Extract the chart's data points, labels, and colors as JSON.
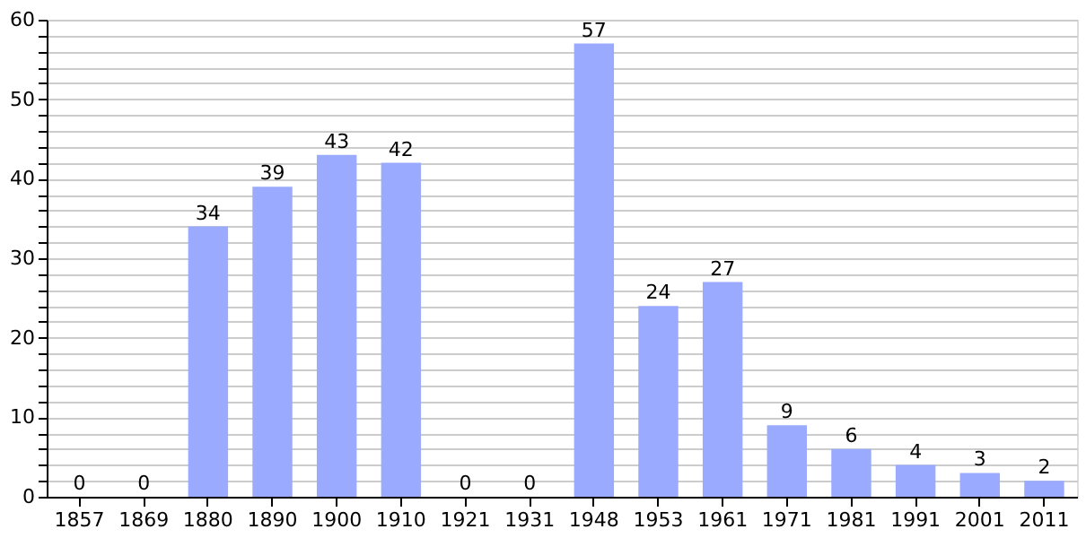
{
  "chart_data": {
    "type": "bar",
    "categories": [
      "1857",
      "1869",
      "1880",
      "1890",
      "1900",
      "1910",
      "1921",
      "1931",
      "1948",
      "1953",
      "1961",
      "1971",
      "1981",
      "1991",
      "2001",
      "2011"
    ],
    "values": [
      0,
      0,
      34,
      39,
      43,
      42,
      0,
      0,
      57,
      24,
      27,
      9,
      6,
      4,
      3,
      2
    ],
    "color": "#99aaff",
    "data_labels": true,
    "grid": "y",
    "ylim": [
      0,
      60
    ],
    "yticks": [
      0,
      {
        "value": 2,
        "label": null
      },
      {
        "value": 4,
        "label": null
      },
      {
        "value": 6,
        "label": null
      },
      {
        "value": 8,
        "label": null
      },
      10,
      {
        "value": 12,
        "label": null
      },
      {
        "value": 14,
        "label": null
      },
      {
        "value": 16,
        "label": null
      },
      {
        "value": 18,
        "label": null
      },
      20,
      {
        "value": 22,
        "label": null
      },
      {
        "value": 24,
        "label": null
      },
      {
        "value": 26,
        "label": null
      },
      {
        "value": 28,
        "label": null
      },
      30,
      {
        "value": 32,
        "label": null
      },
      {
        "value": 34,
        "label": null
      },
      {
        "value": 36,
        "label": null
      },
      {
        "value": 38,
        "label": null
      },
      40,
      {
        "value": 42,
        "label": null
      },
      {
        "value": 44,
        "label": null
      },
      {
        "value": 46,
        "label": null
      },
      {
        "value": 48,
        "label": null
      },
      50,
      {
        "value": 52,
        "label": null
      },
      {
        "value": 54,
        "label": null
      },
      {
        "value": 56,
        "label": null
      },
      {
        "value": 58,
        "label": null
      },
      60
    ]
  }
}
